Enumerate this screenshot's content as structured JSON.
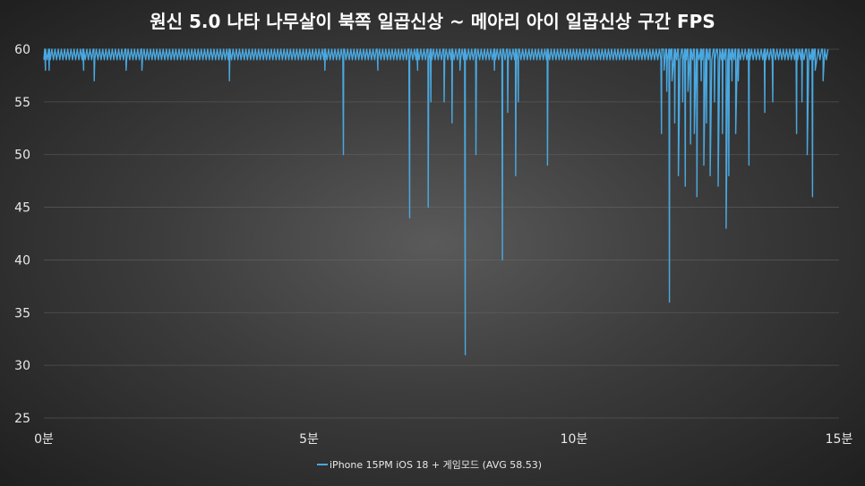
{
  "title": "원신 5.0 나타 나무살이 북쪽 일곱신상 ~ 메아리 아이 일곱신상 구간 FPS",
  "colors": {
    "series": "#4aa8e0",
    "grid": "#6a6a6a",
    "text": "#e8e8e8"
  },
  "chart_data": {
    "type": "line",
    "title": "원신 5.0 나타 나무살이 북쪽 일곱신상 ~ 메아리 아이 일곱신상 구간 FPS",
    "xlabel": "",
    "ylabel": "",
    "ylim": [
      25,
      60
    ],
    "xlim": [
      0,
      15
    ],
    "yticks": [
      25,
      30,
      35,
      40,
      45,
      50,
      55,
      60
    ],
    "yticks_labels": [
      "25",
      "30",
      "35",
      "40",
      "45",
      "50",
      "55",
      "60"
    ],
    "xticks": [
      0,
      5,
      10,
      15
    ],
    "xticks_labels": [
      "0분",
      "5분",
      "10분",
      "15분"
    ],
    "grid": "horizontal",
    "legend_position": "bottom",
    "series": [
      {
        "name": "iPhone 15PM iOS 18 + 게임모드 (AVG 58.53)",
        "color": "#4aa8e0",
        "baseline": [
          59,
          60
        ],
        "dips": [
          {
            "x": 0.03,
            "y": 58
          },
          {
            "x": 0.1,
            "y": 58
          },
          {
            "x": 0.75,
            "y": 58
          },
          {
            "x": 0.95,
            "y": 57
          },
          {
            "x": 1.55,
            "y": 58
          },
          {
            "x": 1.85,
            "y": 58
          },
          {
            "x": 3.5,
            "y": 57
          },
          {
            "x": 5.3,
            "y": 58
          },
          {
            "x": 5.65,
            "y": 50
          },
          {
            "x": 6.3,
            "y": 58
          },
          {
            "x": 6.9,
            "y": 44
          },
          {
            "x": 7.05,
            "y": 58
          },
          {
            "x": 7.25,
            "y": 45
          },
          {
            "x": 7.3,
            "y": 55
          },
          {
            "x": 7.55,
            "y": 55
          },
          {
            "x": 7.7,
            "y": 53
          },
          {
            "x": 7.85,
            "y": 58
          },
          {
            "x": 7.95,
            "y": 31
          },
          {
            "x": 8.15,
            "y": 50
          },
          {
            "x": 8.5,
            "y": 58
          },
          {
            "x": 8.65,
            "y": 40
          },
          {
            "x": 8.75,
            "y": 54
          },
          {
            "x": 8.9,
            "y": 48
          },
          {
            "x": 8.95,
            "y": 55
          },
          {
            "x": 9.5,
            "y": 49
          },
          {
            "x": 11.65,
            "y": 52
          },
          {
            "x": 11.7,
            "y": 58
          },
          {
            "x": 11.75,
            "y": 56
          },
          {
            "x": 11.8,
            "y": 36
          },
          {
            "x": 11.85,
            "y": 57
          },
          {
            "x": 11.9,
            "y": 53
          },
          {
            "x": 11.97,
            "y": 48
          },
          {
            "x": 12.05,
            "y": 55
          },
          {
            "x": 12.1,
            "y": 47
          },
          {
            "x": 12.15,
            "y": 56
          },
          {
            "x": 12.2,
            "y": 51
          },
          {
            "x": 12.27,
            "y": 52
          },
          {
            "x": 12.32,
            "y": 46
          },
          {
            "x": 12.4,
            "y": 57
          },
          {
            "x": 12.45,
            "y": 49
          },
          {
            "x": 12.5,
            "y": 53
          },
          {
            "x": 12.57,
            "y": 48
          },
          {
            "x": 12.65,
            "y": 55
          },
          {
            "x": 12.72,
            "y": 47
          },
          {
            "x": 12.8,
            "y": 52
          },
          {
            "x": 12.87,
            "y": 43
          },
          {
            "x": 12.92,
            "y": 48
          },
          {
            "x": 12.98,
            "y": 57
          },
          {
            "x": 13.05,
            "y": 52
          },
          {
            "x": 13.1,
            "y": 57
          },
          {
            "x": 13.3,
            "y": 49
          },
          {
            "x": 13.6,
            "y": 54
          },
          {
            "x": 13.75,
            "y": 55
          },
          {
            "x": 14.2,
            "y": 52
          },
          {
            "x": 14.3,
            "y": 55
          },
          {
            "x": 14.4,
            "y": 50
          },
          {
            "x": 14.5,
            "y": 46
          },
          {
            "x": 14.55,
            "y": 58
          },
          {
            "x": 14.7,
            "y": 57
          },
          {
            "x": 14.8,
            "y": 57
          }
        ],
        "end_x": 14.8
      }
    ]
  }
}
